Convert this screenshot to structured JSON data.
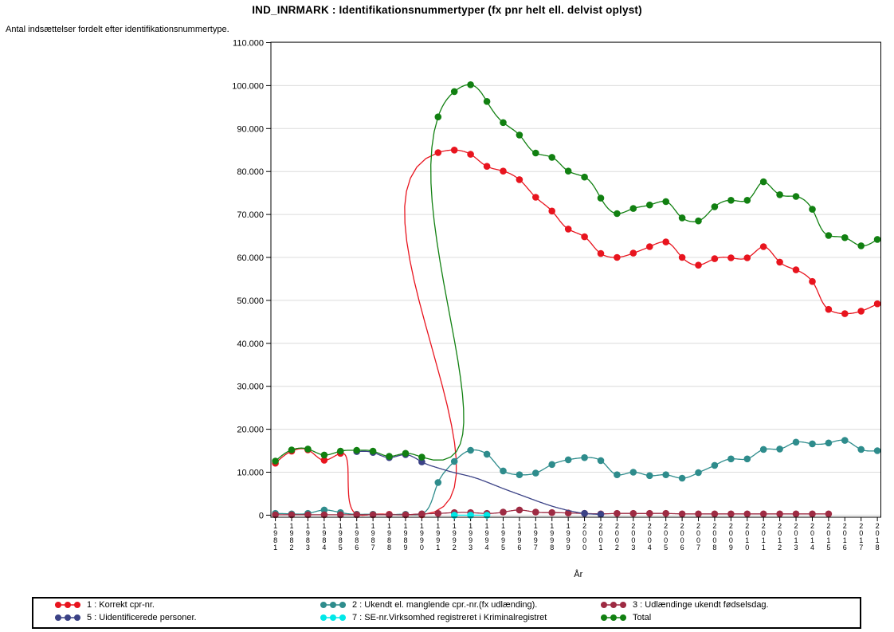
{
  "title": "IND_INRMARK : Identifikationsnummertyper (fx pnr helt ell. delvist oplyst)",
  "subtitle": "Antal indsættelser fordelt efter identifikationsnummertype.",
  "x_axis_label": "År",
  "y_tick_labels": [
    "0",
    "10.000",
    "20.000",
    "30.000",
    "40.000",
    "50.000",
    "60.000",
    "70.000",
    "80.000",
    "90.000",
    "100.000",
    "110.000"
  ],
  "chart_data": {
    "type": "line",
    "interpolation": "parametric-spline",
    "x": [
      1981,
      1982,
      1983,
      1984,
      1985,
      1986,
      1987,
      1988,
      1989,
      1990,
      1991,
      1992,
      1993,
      1994,
      1995,
      1996,
      1997,
      1998,
      1999,
      2000,
      2001,
      2002,
      2003,
      2004,
      2005,
      2006,
      2007,
      2008,
      2009,
      2010,
      2011,
      2012,
      2013,
      2014,
      2015,
      2016,
      2017,
      2018
    ],
    "ylim": [
      0,
      110000
    ],
    "y_tick_step": 10000,
    "grid": "horizontal",
    "legend_position": "bottom",
    "series": [
      {
        "name": "1 : Korrekt cpr-nr.",
        "color": "#e8141e",
        "years": [
          1981,
          1982,
          1983,
          1984,
          1985,
          1986,
          1987,
          1988,
          1989,
          1990,
          1991,
          1992,
          1993,
          1994,
          1995,
          1996,
          1997,
          1998,
          1999,
          2000,
          2001,
          2002,
          2003,
          2004,
          2005,
          2006,
          2007,
          2008,
          2009,
          2010,
          2011,
          2012,
          2013,
          2014,
          2015,
          2016,
          2017,
          2018
        ],
        "values": [
          12100,
          14900,
          15200,
          12800,
          14400,
          200,
          200,
          200,
          100,
          100,
          84400,
          85000,
          84000,
          81200,
          80100,
          78100,
          74000,
          70800,
          66600,
          64800,
          60900,
          60000,
          61000,
          62500,
          63600,
          60000,
          58200,
          59700,
          59900,
          59900,
          62500,
          58900,
          57100,
          54400,
          47900,
          46900,
          47500,
          49200
        ]
      },
      {
        "name": "2 : Ukendt el. manglende cpr.-nr.(fx udlænding).",
        "color": "#2e8c8c",
        "years": [
          1981,
          1982,
          1983,
          1984,
          1985,
          1986,
          1987,
          1988,
          1989,
          1990,
          1991,
          1992,
          1993,
          1994,
          1995,
          1996,
          1997,
          1998,
          1999,
          2000,
          2001,
          2002,
          2003,
          2004,
          2005,
          2006,
          2007,
          2008,
          2009,
          2010,
          2011,
          2012,
          2013,
          2014,
          2015,
          2016,
          2017,
          2018
        ],
        "values": [
          400,
          300,
          400,
          1200,
          600,
          200,
          200,
          100,
          200,
          300,
          7600,
          12500,
          15100,
          14200,
          10300,
          9400,
          9800,
          11800,
          12900,
          13400,
          12700,
          9400,
          10000,
          9200,
          9400,
          8600,
          9900,
          11600,
          13100,
          13100,
          15300,
          15400,
          17000,
          16600,
          16800,
          17400,
          15300,
          15000
        ]
      },
      {
        "name": "3 : Udlændinge ukendt fødselsdag.",
        "color": "#9e2b43",
        "years": [
          1981,
          1982,
          1983,
          1984,
          1985,
          1986,
          1987,
          1988,
          1989,
          1990,
          1991,
          1992,
          1993,
          1994,
          1995,
          1996,
          1997,
          1998,
          1999,
          2000,
          2001,
          2002,
          2003,
          2004,
          2005,
          2006,
          2007,
          2008,
          2009,
          2010,
          2011,
          2012,
          2013,
          2014,
          2015
        ],
        "values": [
          100,
          100,
          100,
          100,
          100,
          100,
          100,
          100,
          100,
          300,
          400,
          600,
          600,
          400,
          700,
          1200,
          700,
          600,
          500,
          400,
          300,
          400,
          400,
          400,
          400,
          300,
          300,
          300,
          300,
          300,
          300,
          300,
          300,
          300,
          300
        ]
      },
      {
        "name": "5 : Uidentificerede personer.",
        "color": "#3b4286",
        "years": [
          1986,
          1987,
          1988,
          1989,
          1990,
          1991,
          1992,
          1993,
          1994,
          1995,
          1996,
          1997,
          1998,
          1999,
          2000,
          2001
        ],
        "values": [
          14800,
          14600,
          13400,
          14100,
          12400,
          11000,
          9900,
          9000,
          7700,
          6200,
          4800,
          3400,
          2100,
          1100,
          400,
          200
        ],
        "no_marker_years": [
          1991,
          1992,
          1993,
          1994,
          1995,
          1996,
          1997,
          1998,
          1999
        ]
      },
      {
        "name": "7 : SE-nr.Virksomhed registreret i Kriminalregistret",
        "color": "#00e8e8",
        "years": [
          1992,
          1993,
          1994
        ],
        "values": [
          0,
          0,
          0
        ]
      },
      {
        "name": "Total",
        "color": "#118011",
        "years": [
          1981,
          1982,
          1983,
          1984,
          1985,
          1986,
          1987,
          1988,
          1989,
          1990,
          1991,
          1992,
          1993,
          1994,
          1995,
          1996,
          1997,
          1998,
          1999,
          2000,
          2001,
          2002,
          2003,
          2004,
          2005,
          2006,
          2007,
          2008,
          2009,
          2010,
          2011,
          2012,
          2013,
          2014,
          2015,
          2016,
          2017,
          2018
        ],
        "values": [
          12600,
          15200,
          15400,
          14000,
          14900,
          15100,
          14900,
          13700,
          14400,
          13500,
          92700,
          98600,
          100200,
          96300,
          91400,
          88500,
          84300,
          83300,
          80100,
          78700,
          73800,
          70200,
          71400,
          72200,
          73000,
          69200,
          68500,
          71800,
          73300,
          73300,
          77600,
          74600,
          74200,
          71200,
          65100,
          64600,
          62700,
          64200
        ]
      }
    ]
  }
}
